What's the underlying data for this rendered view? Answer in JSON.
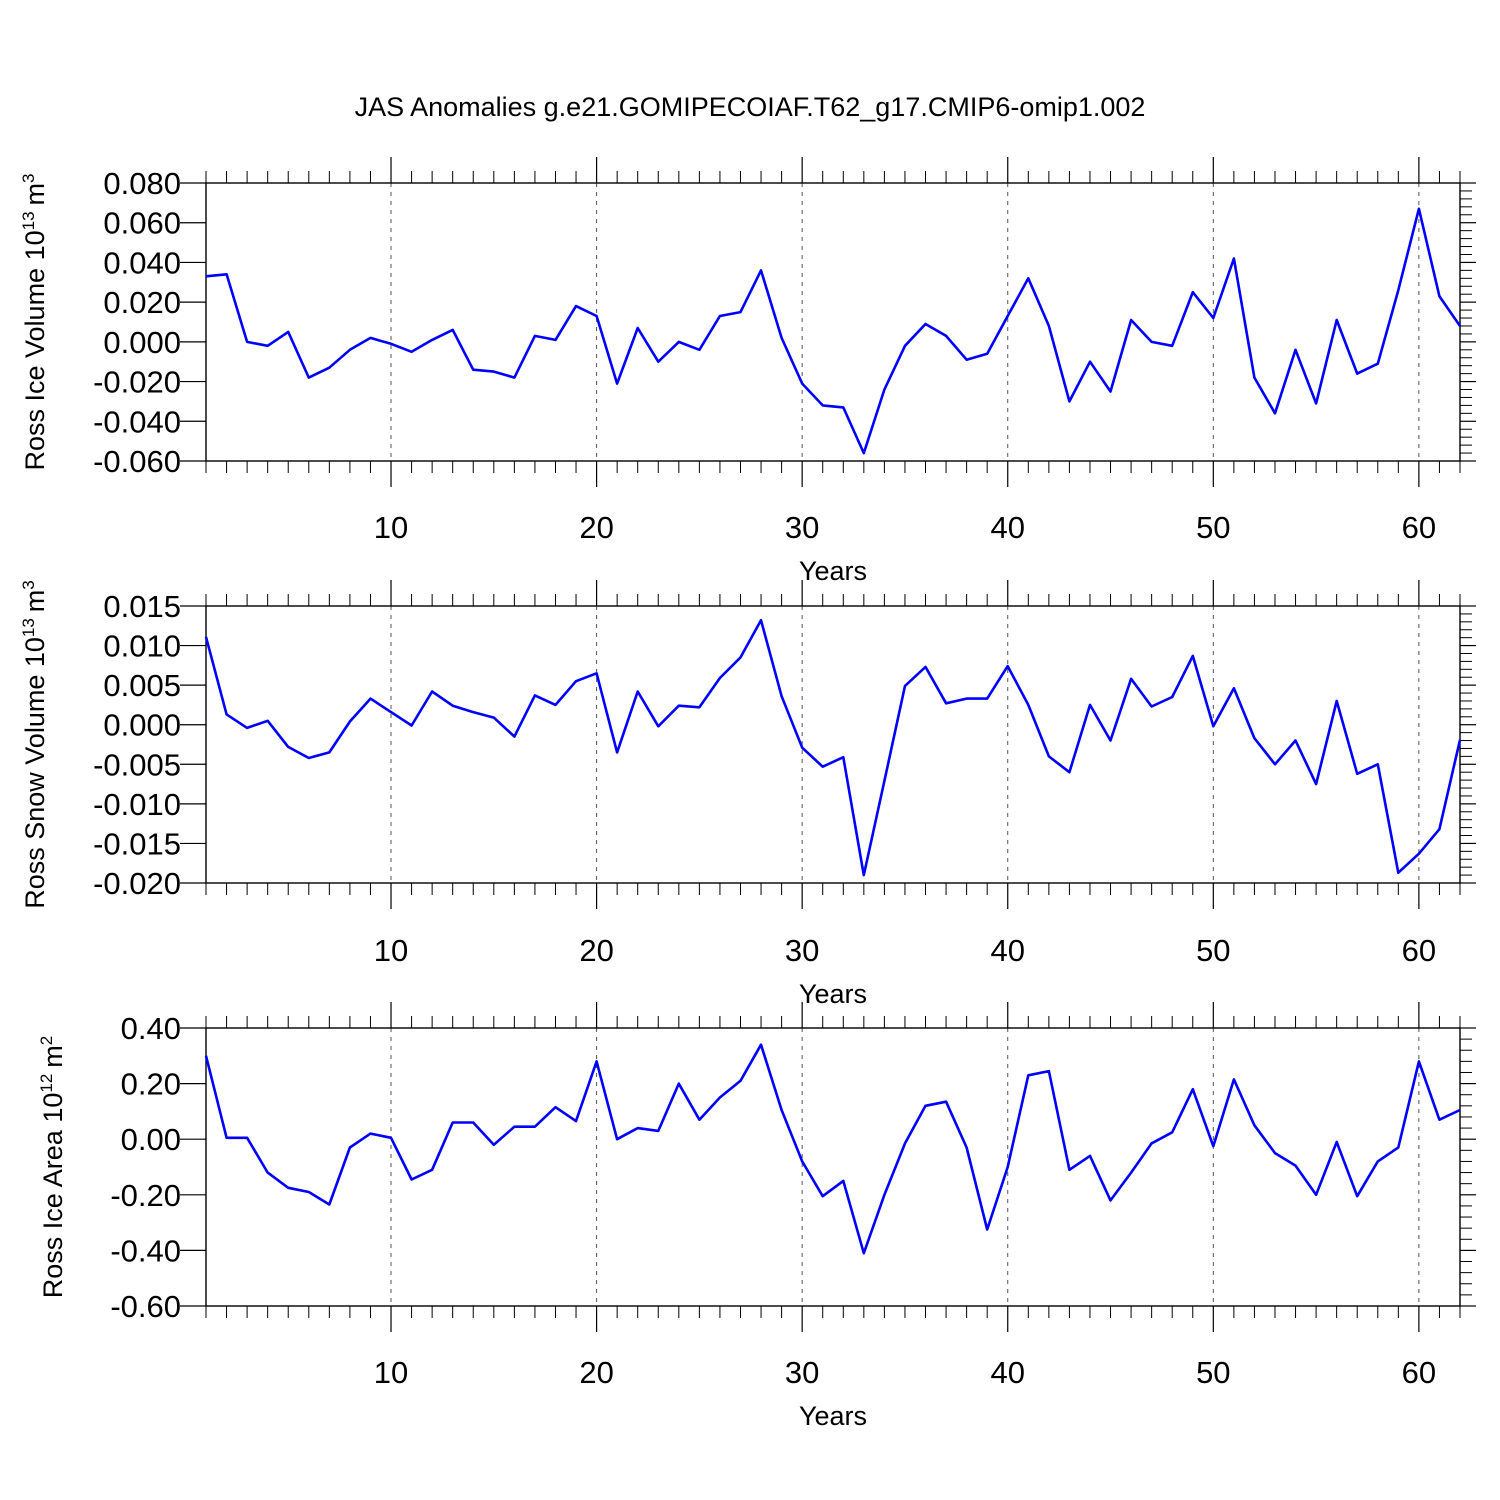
{
  "figure": {
    "title": "JAS Anomalies g.e21.GOMIPECOIAF.T62_g17.CMIP6-omip1.002"
  },
  "chart_data": [
    {
      "type": "line",
      "title": "",
      "xlabel": "Years",
      "ylabel": "Ross Ice Volume 10",
      "ylabel_sup": "13",
      "ylabel_unit": "m",
      "ylabel_unit_sup": "3",
      "xlim": [
        1,
        62
      ],
      "ylim": [
        -0.06,
        0.08
      ],
      "x_ticks": [
        10,
        20,
        30,
        40,
        50,
        60
      ],
      "x_tick_labels": [
        "10",
        "20",
        "30",
        "40",
        "50",
        "60"
      ],
      "y_ticks": [
        -0.06,
        -0.04,
        -0.02,
        0.0,
        0.02,
        0.04,
        0.06,
        0.08
      ],
      "y_tick_labels": [
        "-0.060",
        "-0.040",
        "-0.020",
        "0.000",
        "0.020",
        "0.040",
        "0.060",
        "0.080"
      ],
      "grid": "vertical dashed at major x ticks",
      "line_color": "#0000ff",
      "series": [
        {
          "name": "Ross Ice Volume",
          "x": [
            1,
            2,
            3,
            4,
            5,
            6,
            7,
            8,
            9,
            10,
            11,
            12,
            13,
            14,
            15,
            16,
            17,
            18,
            19,
            20,
            21,
            22,
            23,
            24,
            25,
            26,
            27,
            28,
            29,
            30,
            31,
            32,
            33,
            34,
            35,
            36,
            37,
            38,
            39,
            40,
            41,
            42,
            43,
            44,
            45,
            46,
            47,
            48,
            49,
            50,
            51,
            52,
            53,
            54,
            55,
            56,
            57,
            58,
            59,
            60,
            61,
            62
          ],
          "values": [
            0.033,
            0.034,
            0.0,
            -0.002,
            0.005,
            -0.018,
            -0.013,
            -0.004,
            0.002,
            -0.001,
            -0.005,
            0.001,
            0.006,
            -0.014,
            -0.015,
            -0.018,
            0.003,
            0.001,
            0.018,
            0.013,
            -0.021,
            0.007,
            -0.01,
            0.0,
            -0.004,
            0.013,
            0.015,
            0.036,
            0.002,
            -0.021,
            -0.032,
            -0.033,
            -0.056,
            -0.024,
            -0.002,
            0.009,
            0.003,
            -0.009,
            -0.006,
            0.013,
            0.032,
            0.008,
            -0.03,
            -0.01,
            -0.025,
            0.011,
            0.0,
            -0.002,
            0.025,
            0.012,
            0.042,
            -0.018,
            -0.036,
            -0.004,
            -0.031,
            0.011,
            -0.016,
            -0.011,
            0.026,
            0.067,
            0.023,
            0.008
          ]
        }
      ]
    },
    {
      "type": "line",
      "title": "",
      "xlabel": "Years",
      "ylabel": "Ross Snow Volume 10",
      "ylabel_sup": "13",
      "ylabel_unit": "m",
      "ylabel_unit_sup": "3",
      "xlim": [
        1,
        62
      ],
      "ylim": [
        -0.02,
        0.015
      ],
      "x_ticks": [
        10,
        20,
        30,
        40,
        50,
        60
      ],
      "x_tick_labels": [
        "10",
        "20",
        "30",
        "40",
        "50",
        "60"
      ],
      "y_ticks": [
        -0.02,
        -0.015,
        -0.01,
        -0.005,
        0.0,
        0.005,
        0.01,
        0.015
      ],
      "y_tick_labels": [
        "-0.020",
        "-0.015",
        "-0.010",
        "-0.005",
        "0.000",
        "0.005",
        "0.010",
        "0.015"
      ],
      "grid": "vertical dashed at major x ticks",
      "line_color": "#0000ff",
      "series": [
        {
          "name": "Ross Snow Volume",
          "x": [
            1,
            2,
            3,
            4,
            5,
            6,
            7,
            8,
            9,
            10,
            11,
            12,
            13,
            14,
            15,
            16,
            17,
            18,
            19,
            20,
            21,
            22,
            23,
            24,
            25,
            26,
            27,
            28,
            29,
            30,
            31,
            32,
            33,
            34,
            35,
            36,
            37,
            38,
            39,
            40,
            41,
            42,
            43,
            44,
            45,
            46,
            47,
            48,
            49,
            50,
            51,
            52,
            53,
            54,
            55,
            56,
            57,
            58,
            59,
            60,
            61,
            62
          ],
          "values": [
            0.0111,
            0.0013,
            -0.0004,
            0.0005,
            -0.0028,
            -0.0042,
            -0.0035,
            0.0004,
            0.0033,
            0.0016,
            -0.0001,
            0.0042,
            0.0024,
            0.0016,
            0.0009,
            -0.0015,
            0.0037,
            0.0025,
            0.0055,
            0.0065,
            -0.0035,
            0.0042,
            -0.0002,
            0.0024,
            0.0022,
            0.0059,
            0.0085,
            0.0132,
            0.0036,
            -0.0029,
            -0.0053,
            -0.0041,
            -0.019,
            -0.0071,
            0.0049,
            0.0073,
            0.0027,
            0.0033,
            0.0033,
            0.0074,
            0.0025,
            -0.004,
            -0.006,
            0.0025,
            -0.002,
            0.0058,
            0.0023,
            0.0035,
            0.0087,
            -0.0002,
            0.0046,
            -0.0017,
            -0.005,
            -0.002,
            -0.0075,
            0.003,
            -0.0062,
            -0.005,
            -0.0187,
            -0.0163,
            -0.0132,
            -0.0019
          ]
        }
      ]
    },
    {
      "type": "line",
      "title": "",
      "xlabel": "Years",
      "ylabel": "Ross Ice Area 10",
      "ylabel_sup": "12",
      "ylabel_unit": "m",
      "ylabel_unit_sup": "2",
      "xlim": [
        1,
        62
      ],
      "ylim": [
        -0.6,
        0.4
      ],
      "x_ticks": [
        10,
        20,
        30,
        40,
        50,
        60
      ],
      "x_tick_labels": [
        "10",
        "20",
        "30",
        "40",
        "50",
        "60"
      ],
      "y_ticks": [
        -0.6,
        -0.4,
        -0.2,
        0.0,
        0.2,
        0.4
      ],
      "y_tick_labels": [
        "-0.60",
        "-0.40",
        "-0.20",
        "0.00",
        "0.20",
        "0.40"
      ],
      "grid": "vertical dashed at major x ticks",
      "line_color": "#0000ff",
      "series": [
        {
          "name": "Ross Ice Area",
          "x": [
            1,
            2,
            3,
            4,
            5,
            6,
            7,
            8,
            9,
            10,
            11,
            12,
            13,
            14,
            15,
            16,
            17,
            18,
            19,
            20,
            21,
            22,
            23,
            24,
            25,
            26,
            27,
            28,
            29,
            30,
            31,
            32,
            33,
            34,
            35,
            36,
            37,
            38,
            39,
            40,
            41,
            42,
            43,
            44,
            45,
            46,
            47,
            48,
            49,
            50,
            51,
            52,
            53,
            54,
            55,
            56,
            57,
            58,
            59,
            60,
            61,
            62
          ],
          "values": [
            0.3,
            0.005,
            0.005,
            -0.12,
            -0.175,
            -0.19,
            -0.235,
            -0.03,
            0.02,
            0.005,
            -0.145,
            -0.11,
            0.06,
            0.06,
            -0.02,
            0.045,
            0.045,
            0.115,
            0.065,
            0.28,
            0.0,
            0.04,
            0.03,
            0.2,
            0.07,
            0.15,
            0.21,
            0.34,
            0.105,
            -0.08,
            -0.205,
            -0.15,
            -0.41,
            -0.2,
            -0.015,
            0.12,
            0.135,
            -0.03,
            -0.325,
            -0.1,
            0.23,
            0.245,
            -0.11,
            -0.06,
            -0.22,
            -0.12,
            -0.015,
            0.025,
            0.18,
            -0.025,
            0.215,
            0.05,
            -0.05,
            -0.095,
            -0.2,
            -0.01,
            -0.205,
            -0.08,
            -0.03,
            0.28,
            0.07,
            0.105
          ]
        }
      ]
    }
  ]
}
